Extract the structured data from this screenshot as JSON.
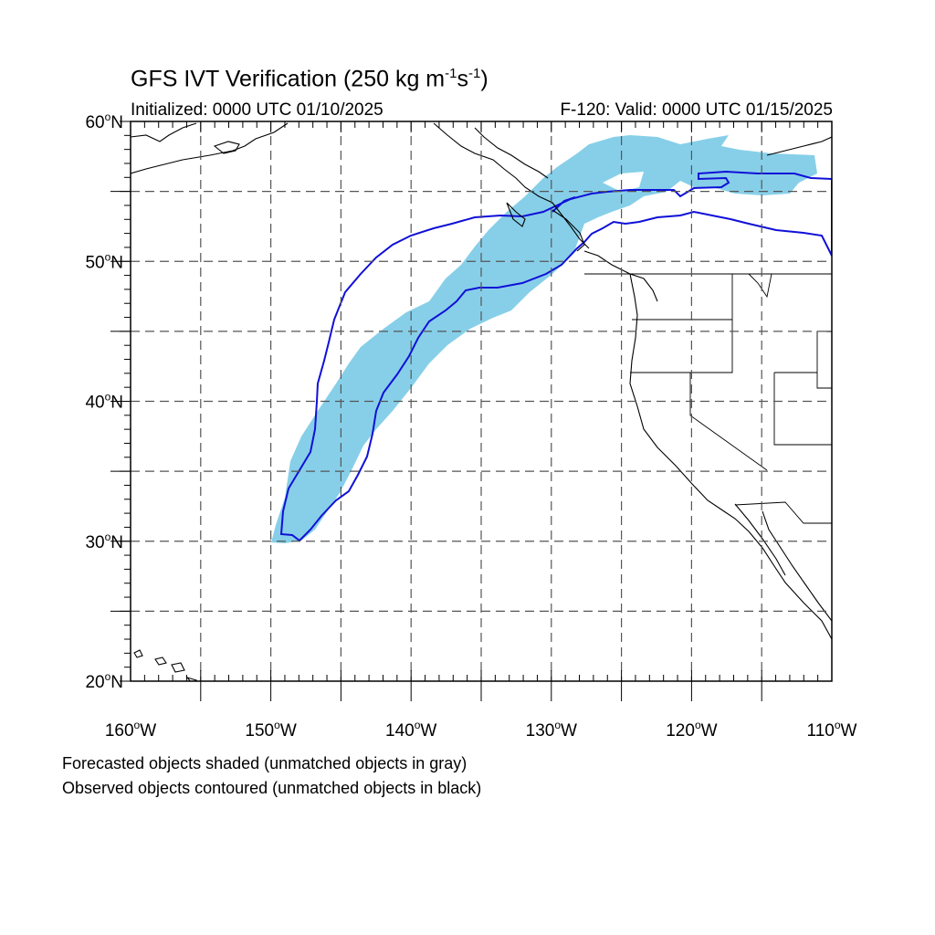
{
  "title": {
    "main": "GFS IVT Verification (250 kg m",
    "exp1": "-1",
    "mid": "s",
    "exp2": "-1",
    "close": ")"
  },
  "initialized": "Initialized: 0000 UTC 01/10/2025",
  "valid": "F-120: Valid: 0000 UTC 01/15/2025",
  "notes": {
    "line1": "Forecasted objects shaded (unmatched objects in gray)",
    "line2": "Observed objects contoured (unmatched objects in black)"
  },
  "map": {
    "lat_range": [
      20,
      60
    ],
    "lon_range": [
      -160,
      -110
    ],
    "lat_labels": [
      {
        "value": 60,
        "text": "60",
        "hemi": "N"
      },
      {
        "value": 50,
        "text": "50",
        "hemi": "N"
      },
      {
        "value": 40,
        "text": "40",
        "hemi": "N"
      },
      {
        "value": 30,
        "text": "30",
        "hemi": "N"
      },
      {
        "value": 20,
        "text": "20",
        "hemi": "N"
      }
    ],
    "lon_labels": [
      {
        "value": -160,
        "text": "160",
        "hemi": "W"
      },
      {
        "value": -150,
        "text": "150",
        "hemi": "W"
      },
      {
        "value": -140,
        "text": "140",
        "hemi": "W"
      },
      {
        "value": -130,
        "text": "130",
        "hemi": "W"
      },
      {
        "value": -120,
        "text": "120",
        "hemi": "W"
      },
      {
        "value": -110,
        "text": "110",
        "hemi": "W"
      }
    ],
    "gridlines_lat": [
      25,
      30,
      35,
      40,
      45,
      50,
      55
    ],
    "gridlines_lon": [
      -155,
      -150,
      -145,
      -140,
      -135,
      -130,
      -125,
      -120,
      -115
    ],
    "colors": {
      "forecast_fill": "#87cfe8",
      "observed_contour": "#1010d8",
      "coast": "#000000",
      "grid": "#555555"
    }
  }
}
